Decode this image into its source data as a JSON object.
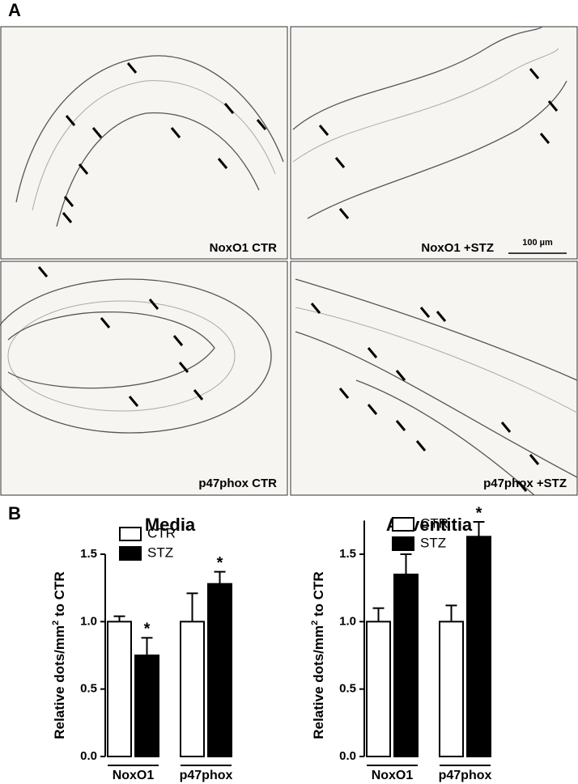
{
  "panel_a": {
    "label": "A",
    "images": [
      "NoxO1 CTR",
      "NoxO1 +STZ",
      "p47phox CTR",
      "p47phox +STZ"
    ],
    "scale_bar": "100 µm"
  },
  "panel_b": {
    "label": "B"
  },
  "chart_data": [
    {
      "type": "bar",
      "title": "Media",
      "ylabel": {
        "before": "Relative dots/mm",
        "sup": "2",
        "after": " to CTR"
      },
      "categories": [
        "NoxO1",
        "p47phox"
      ],
      "series": [
        {
          "name": "CTR",
          "color": "#ffffff",
          "values": [
            1.0,
            1.0
          ],
          "errors": [
            0.04,
            0.21
          ]
        },
        {
          "name": "STZ",
          "color": "#000000",
          "values": [
            0.75,
            1.28
          ],
          "errors": [
            0.13,
            0.09
          ]
        }
      ],
      "annotations": [
        {
          "text": "*",
          "series": 1,
          "index": 0
        },
        {
          "text": "*",
          "series": 1,
          "index": 1
        }
      ],
      "ylim": [
        0,
        1.5
      ],
      "yticks": [
        {
          "value": 0,
          "label": "0.0"
        },
        0.5,
        {
          "value": 1,
          "label": "1.0"
        },
        1.5
      ]
    },
    {
      "type": "bar",
      "title": "Adventitia",
      "ylabel": {
        "before": "Relative dots/mm",
        "sup": "2",
        "after": " to CTR"
      },
      "categories": [
        "NoxO1",
        "p47phox"
      ],
      "series": [
        {
          "name": "CTR",
          "color": "#ffffff",
          "values": [
            1.0,
            1.0
          ],
          "errors": [
            0.1,
            0.12
          ]
        },
        {
          "name": "STZ",
          "color": "#000000",
          "values": [
            1.35,
            1.63
          ],
          "errors": [
            0.15,
            0.11
          ]
        }
      ],
      "annotations": [
        {
          "text": "*",
          "series": 1,
          "index": 1
        }
      ],
      "ylim": [
        0,
        1.75
      ],
      "yticks": [
        {
          "value": 0,
          "label": "0.0"
        },
        0.5,
        {
          "value": 1,
          "label": "1.0"
        },
        1.5
      ]
    }
  ]
}
